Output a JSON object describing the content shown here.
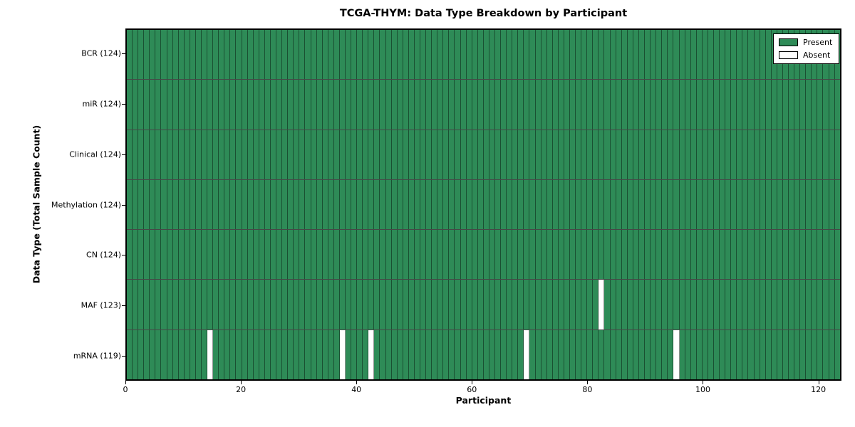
{
  "chart_data": {
    "type": "heatmap",
    "title": "TCGA-THYM: Data Type Breakdown by Participant",
    "xlabel": "Participant",
    "ylabel": "Data Type (Total Sample Count)",
    "n_participants": 124,
    "x_ticks": [
      0,
      20,
      40,
      60,
      80,
      100,
      120
    ],
    "x_range": [
      0,
      124
    ],
    "grid": "cell-borders",
    "rows": [
      {
        "label": "BCR (124)",
        "data_type": "BCR",
        "present_count": 124,
        "absent_participants": []
      },
      {
        "label": "miR (124)",
        "data_type": "miR",
        "present_count": 124,
        "absent_participants": []
      },
      {
        "label": "Clinical (124)",
        "data_type": "Clinical",
        "present_count": 124,
        "absent_participants": []
      },
      {
        "label": "Methylation (124)",
        "data_type": "Methylation",
        "present_count": 124,
        "absent_participants": []
      },
      {
        "label": "CN (124)",
        "data_type": "CN",
        "present_count": 124,
        "absent_participants": []
      },
      {
        "label": "MAF (123)",
        "data_type": "MAF",
        "present_count": 123,
        "absent_participants": [
          82
        ]
      },
      {
        "label": "mRNA (119)",
        "data_type": "mRNA",
        "present_count": 119,
        "absent_participants": [
          14,
          37,
          42,
          69,
          95
        ]
      }
    ],
    "legend": [
      {
        "label": "Present",
        "color": "#2e8b57"
      },
      {
        "label": "Absent",
        "color": "#ffffff"
      }
    ],
    "legend_position": "upper right",
    "colors": {
      "present": "#2e8b57",
      "absent": "#ffffff",
      "cell_edge": "rgba(0,0,0,0.42)",
      "row_edge": "rgba(0,0,0,0.72)",
      "spine": "#000000",
      "background": "#ffffff"
    }
  }
}
